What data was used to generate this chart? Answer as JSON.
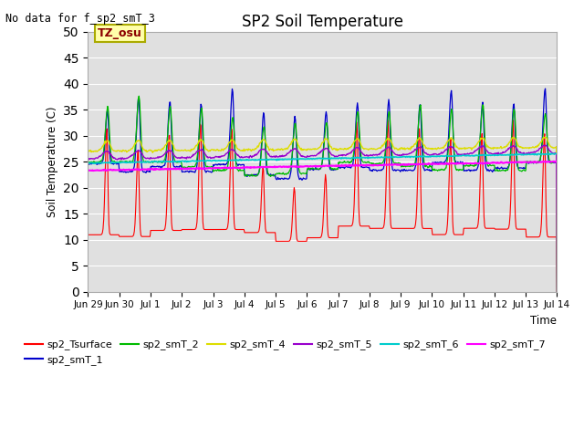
{
  "title": "SP2 Soil Temperature",
  "ylabel": "Soil Temperature (C)",
  "xlabel": "Time",
  "no_data_text": "No data for f_sp2_smT_3",
  "tz_label": "TZ_osu",
  "ylim": [
    0,
    50
  ],
  "yticks": [
    0,
    5,
    10,
    15,
    20,
    25,
    30,
    35,
    40,
    45,
    50
  ],
  "bg_color": "#e0e0e0",
  "series_colors": {
    "sp2_Tsurface": "#ff0000",
    "sp2_smT_1": "#0000cc",
    "sp2_smT_2": "#00bb00",
    "sp2_smT_4": "#dddd00",
    "sp2_smT_5": "#9900cc",
    "sp2_smT_6": "#00cccc",
    "sp2_smT_7": "#ff00ff"
  },
  "num_days": 15,
  "start_day": 0
}
